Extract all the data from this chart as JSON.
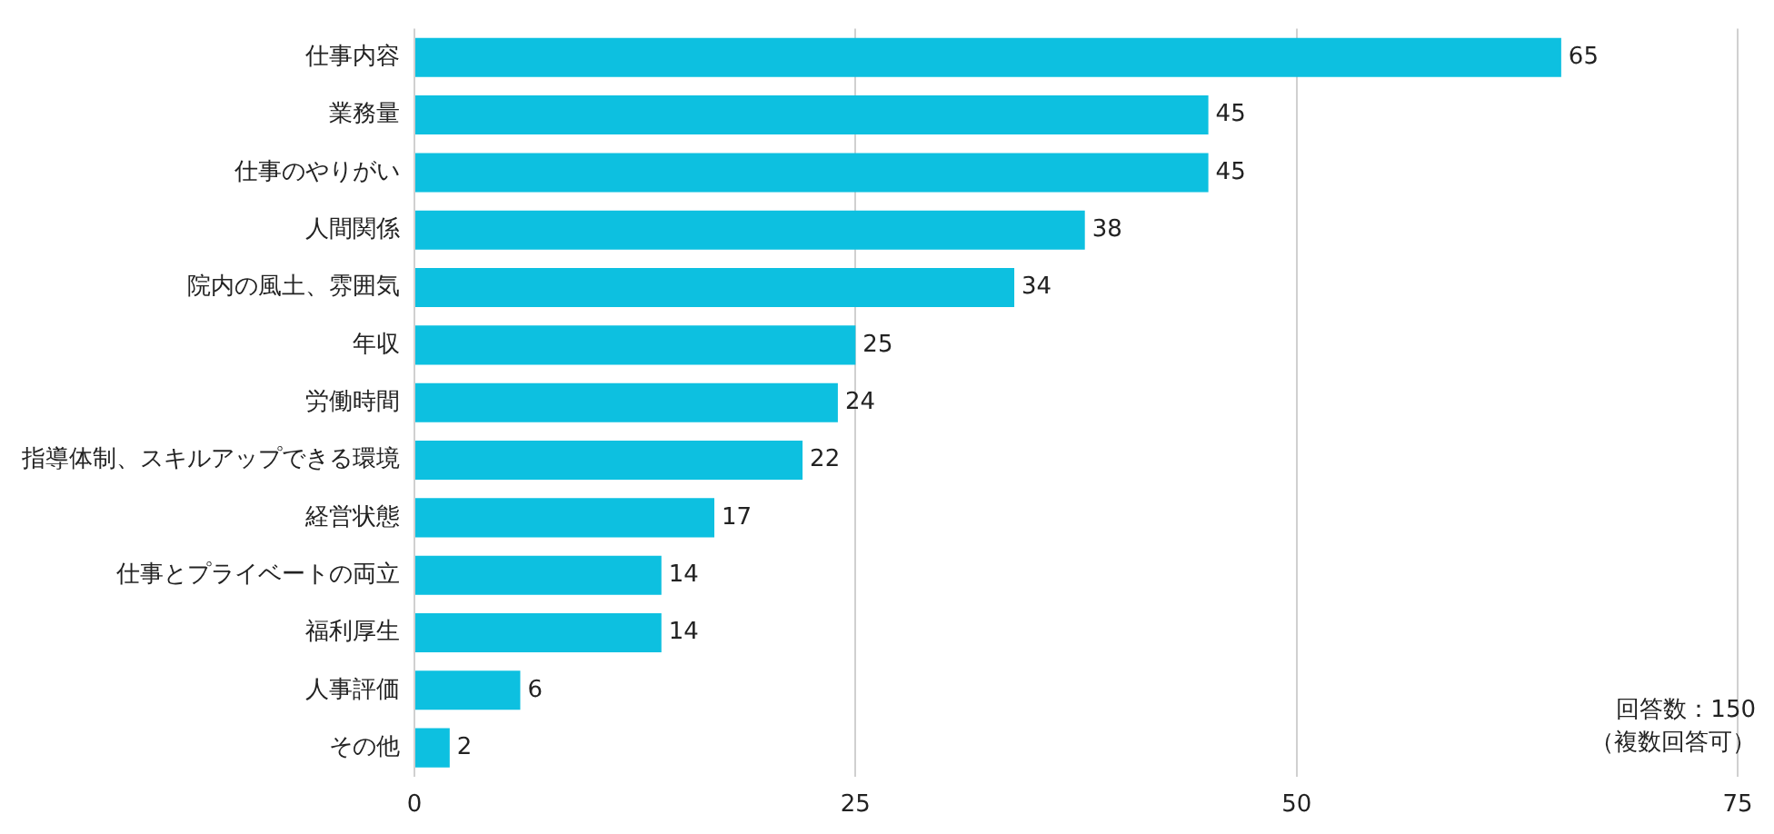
{
  "chart_data": {
    "type": "bar",
    "orientation": "horizontal",
    "categories": [
      "仕事内容",
      "業務量",
      "仕事のやりがい",
      "人間関係",
      "院内の風土、雰囲気",
      "年収",
      "労働時間",
      "指導体制、スキルアップできる環境",
      "経営状態",
      "仕事とプライベートの両立",
      "福利厚生",
      "人事評価",
      "その他"
    ],
    "values": [
      65,
      45,
      45,
      38,
      34,
      25,
      24,
      22,
      17,
      14,
      14,
      6,
      2
    ],
    "color": "#0dc0e0",
    "xlim": [
      0,
      75
    ],
    "xticks": [
      0,
      25,
      50,
      75
    ],
    "grid": "x",
    "data_labels": true,
    "annotations": [
      "回答数：150",
      "（複数回答可）"
    ]
  }
}
